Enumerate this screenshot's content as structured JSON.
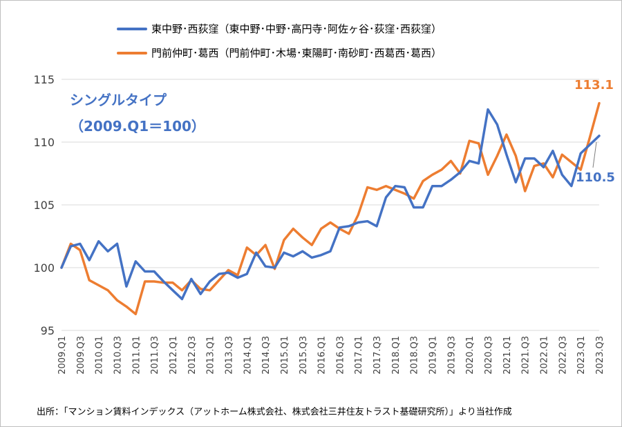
{
  "legend": {
    "series1": "東中野･西荻窪（東中野･中野･高円寺･阿佐ヶ谷･荻窪･西荻窪）",
    "series2": "門前仲町･葛西（門前仲町･木場･東陽町･南砂町･西葛西･葛西）"
  },
  "annotations": {
    "type_label": "シングルタイプ",
    "base_label": "（2009.Q1＝100）",
    "end_label_series1": "110.5",
    "end_label_series2": "113.1"
  },
  "source": "出所：「マンション賃料インデックス（アットホーム株式会社、株式会社三井住友トラスト基礎研究所）」より当社作成",
  "colors": {
    "series1": "#4472c4",
    "series2": "#ed7d31",
    "grid": "#d9d9d9"
  },
  "chart_data": {
    "type": "line",
    "ylim": [
      95,
      115
    ],
    "yticks": [
      95,
      100,
      105,
      110,
      115
    ],
    "x": [
      "2009.Q1",
      "2009.Q2",
      "2009.Q3",
      "2009.Q4",
      "2010.Q1",
      "2010.Q2",
      "2010.Q3",
      "2010.Q4",
      "2011.Q1",
      "2011.Q2",
      "2011.Q3",
      "2011.Q4",
      "2012.Q1",
      "2012.Q2",
      "2012.Q3",
      "2012.Q4",
      "2013.Q1",
      "2013.Q2",
      "2013.Q3",
      "2013.Q4",
      "2014.Q1",
      "2014.Q2",
      "2014.Q3",
      "2014.Q4",
      "2015.Q1",
      "2015.Q2",
      "2015.Q3",
      "2015.Q4",
      "2016.Q1",
      "2016.Q2",
      "2016.Q3",
      "2016.Q4",
      "2017.Q1",
      "2017.Q2",
      "2017.Q3",
      "2017.Q4",
      "2018.Q1",
      "2018.Q2",
      "2018.Q3",
      "2018.Q4",
      "2019.Q1",
      "2019.Q2",
      "2019.Q3",
      "2019.Q4",
      "2020.Q1",
      "2020.Q2",
      "2020.Q3",
      "2020.Q4",
      "2021.Q1",
      "2021.Q2",
      "2021.Q3",
      "2021.Q4",
      "2022.Q1",
      "2022.Q2",
      "2022.Q3",
      "2022.Q4",
      "2023.Q1",
      "2023.Q2",
      "2023.Q3"
    ],
    "xtick_labels": [
      "2009.Q1",
      "2009.Q3",
      "2010.Q1",
      "2010.Q3",
      "2011.Q1",
      "2011.Q3",
      "2012.Q1",
      "2012.Q3",
      "2013.Q1",
      "2013.Q3",
      "2014.Q1",
      "2014.Q3",
      "2015.Q1",
      "2015.Q3",
      "2016.Q1",
      "2016.Q3",
      "2017.Q1",
      "2017.Q3",
      "2018.Q1",
      "2018.Q3",
      "2019.Q1",
      "2019.Q3",
      "2020.Q1",
      "2020.Q3",
      "2021.Q1",
      "2021.Q3",
      "2022.Q1",
      "2022.Q3",
      "2023.Q1",
      "2023.Q3"
    ],
    "series": [
      {
        "name": "東中野･西荻窪（東中野･中野･高円寺･阿佐ヶ谷･荻窪･西荻窪）",
        "values": [
          100.0,
          101.7,
          101.9,
          100.6,
          102.1,
          101.3,
          101.9,
          98.5,
          100.5,
          99.7,
          99.7,
          98.9,
          98.2,
          97.5,
          99.1,
          97.9,
          98.9,
          99.5,
          99.6,
          99.2,
          99.5,
          101.2,
          100.1,
          100.0,
          101.2,
          100.9,
          101.3,
          100.8,
          101.0,
          101.3,
          103.2,
          103.3,
          103.6,
          103.7,
          103.3,
          105.6,
          106.5,
          106.4,
          104.8,
          104.8,
          106.5,
          106.5,
          107.0,
          107.6,
          108.5,
          108.3,
          112.6,
          111.4,
          109.0,
          106.8,
          108.7,
          108.7,
          108.0,
          109.3,
          107.4,
          106.5,
          109.1,
          109.8,
          110.5
        ]
      },
      {
        "name": "門前仲町･葛西（門前仲町･木場･東陽町･南砂町･西葛西･葛西）",
        "values": [
          100.0,
          101.9,
          101.4,
          99.0,
          98.6,
          98.2,
          97.4,
          96.9,
          96.3,
          98.9,
          98.9,
          98.8,
          98.8,
          98.2,
          99.0,
          98.3,
          98.2,
          99.0,
          99.8,
          99.4,
          101.6,
          101.0,
          101.8,
          99.9,
          102.2,
          103.1,
          102.4,
          101.8,
          103.1,
          103.6,
          103.1,
          102.7,
          104.2,
          106.4,
          106.2,
          106.5,
          106.2,
          105.9,
          105.5,
          106.9,
          107.4,
          107.8,
          108.5,
          107.5,
          110.1,
          109.9,
          107.4,
          108.9,
          110.6,
          108.9,
          106.1,
          108.1,
          108.3,
          107.2,
          109.0,
          108.4,
          107.8,
          110.4,
          113.1
        ]
      }
    ]
  }
}
